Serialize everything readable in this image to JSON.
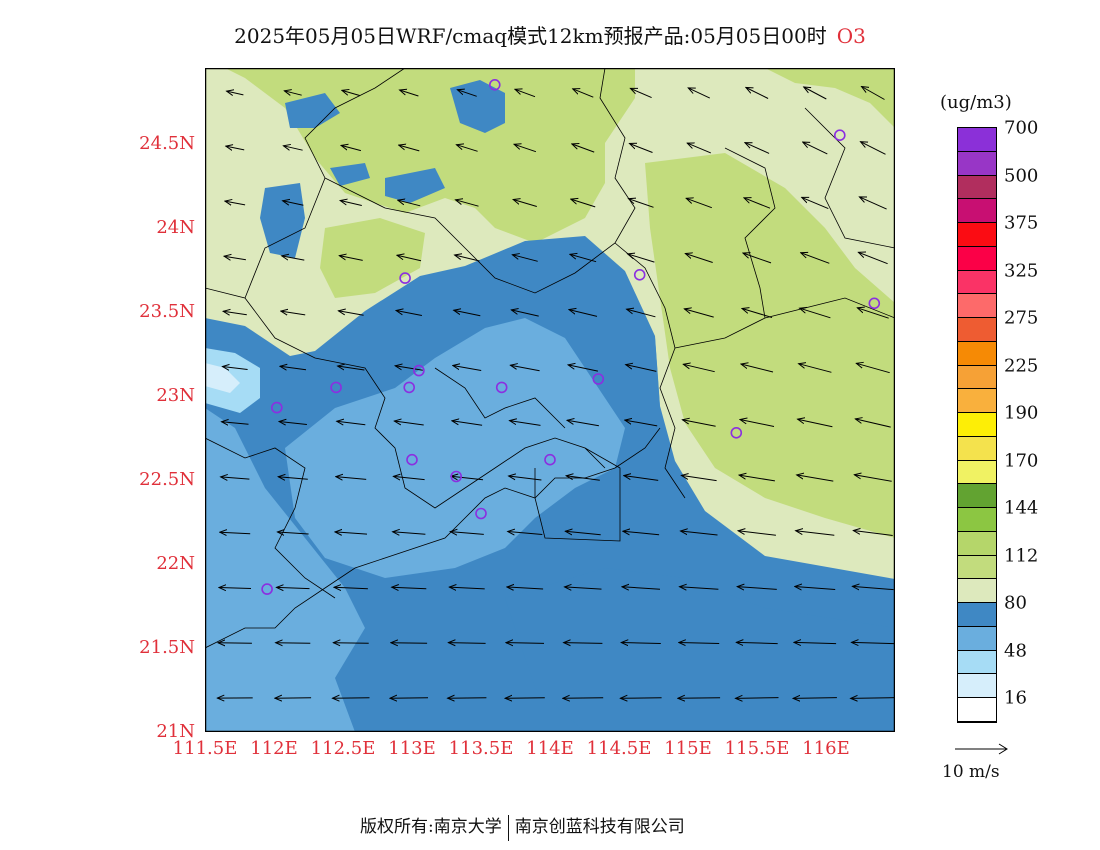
{
  "title": {
    "text": "2025年05月05日WRF/cmaq模式12km预报产品:05月05日00时",
    "pollutant": "O3"
  },
  "axes": {
    "lat_labels": [
      "21N",
      "21.5N",
      "22N",
      "22.5N",
      "23N",
      "23.5N",
      "24N",
      "24.5N"
    ],
    "lat_values": [
      21,
      21.5,
      22,
      22.5,
      23,
      23.5,
      24,
      24.5
    ],
    "lon_labels": [
      "111.5E",
      "112E",
      "112.5E",
      "113E",
      "113.5E",
      "114E",
      "114.5E",
      "115E",
      "115.5E",
      "116E"
    ],
    "lon_values": [
      111.5,
      112,
      112.5,
      113,
      113.5,
      114,
      114.5,
      115,
      115.5,
      116
    ],
    "lat_range": [
      21,
      24.95
    ],
    "lon_range": [
      111.5,
      116.5
    ]
  },
  "colorbar": {
    "unit": "(ug/m3)",
    "colors": [
      "#ffffff",
      "#d6eefb",
      "#a6dcf5",
      "#6aaede",
      "#3f88c4",
      "#dde9bd",
      "#c2dc7d",
      "#b5d66a",
      "#8cc642",
      "#62a331",
      "#f0f263",
      "#f4e24d",
      "#fdee06",
      "#f9b03d",
      "#f6a136",
      "#f68a05",
      "#ee5c32",
      "#fd6a6a",
      "#fa3366",
      "#fb0047",
      "#fb0c13",
      "#c80f72",
      "#b12e5e",
      "#9836c6",
      "#8b30d8"
    ],
    "labels": [
      "16",
      "48",
      "80",
      "112",
      "144",
      "170",
      "190",
      "225",
      "275",
      "325",
      "375",
      "500",
      "700"
    ]
  },
  "wind_reference": {
    "label": "10 m/s"
  },
  "footer": {
    "left": "版权所有:南京大学",
    "right": "南京创蓝科技有限公司"
  }
}
